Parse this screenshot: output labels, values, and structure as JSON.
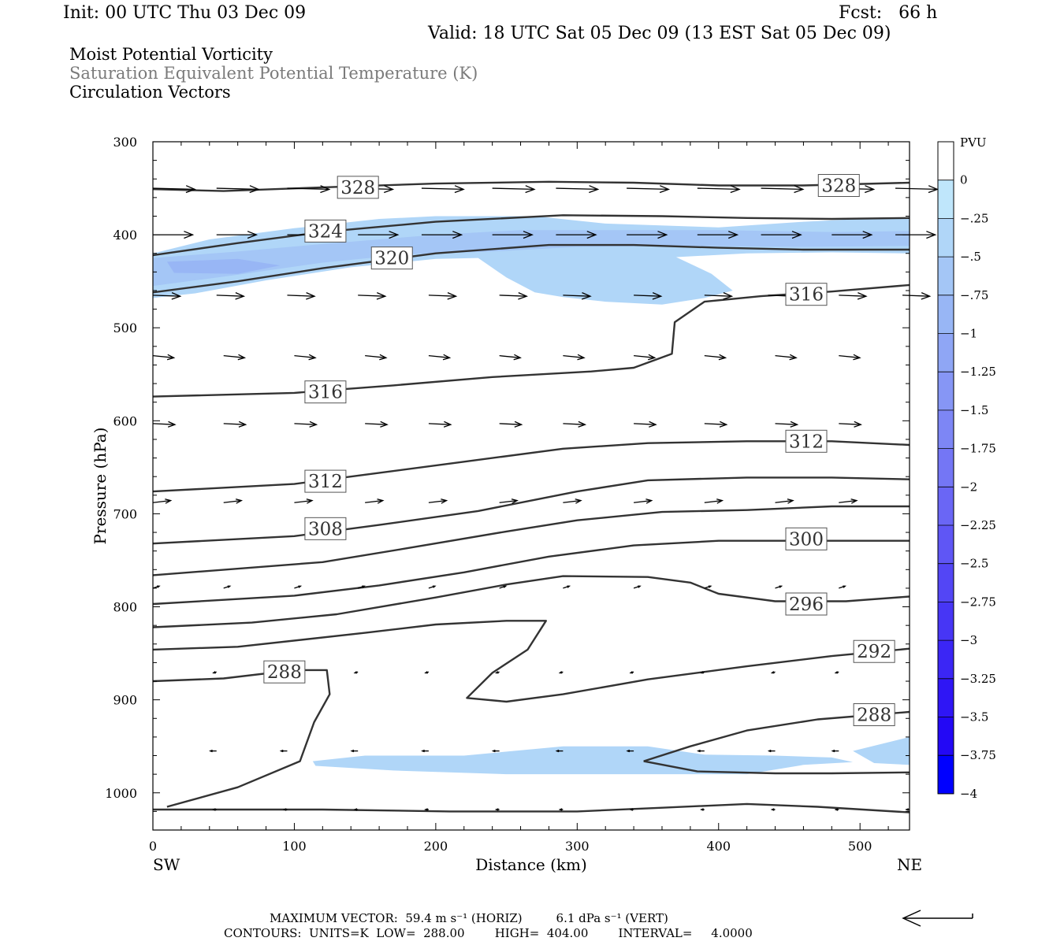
{
  "header": {
    "init": "Init: 00 UTC Thu 03 Dec 09",
    "fcst": "Fcst:   66 h",
    "valid": "Valid: 18 UTC Sat 05 Dec 09 (13 EST Sat 05 Dec 09)",
    "field1": "Moist Potential Vorticity",
    "field2": "Saturation Equivalent Potential Temperature (K)",
    "field3": "Circulation Vectors"
  },
  "footer": {
    "max_vector": "MAXIMUM VECTOR:  59.4 m s⁻¹ (HORIZ)         6.1 dPa s⁻¹ (VERT)",
    "contours": "CONTOURS:  UNITS=K  LOW=  288.00        HIGH=  404.00        INTERVAL=     4.0000"
  },
  "chart_data": {
    "type": "cross-section",
    "xlabel": "Distance (km)",
    "ylabel": "Pressure (hPa)",
    "xlim": [
      0,
      535
    ],
    "ylim": [
      300,
      1040
    ],
    "x_ticks": [
      0,
      100,
      200,
      300,
      400,
      500
    ],
    "y_ticks": [
      300,
      400,
      500,
      600,
      700,
      800,
      900,
      1000
    ],
    "x_end_labels": {
      "left": "SW",
      "right": "NE"
    },
    "colorbar": {
      "units": "PVU",
      "labels": [
        "0",
        "-.25",
        "-.5",
        "-.75",
        "-1",
        "-1.25",
        "-1.5",
        "-1.75",
        "-2",
        "-2.25",
        "-2.5",
        "-2.75",
        "-3",
        "-3.25",
        "-3.5",
        "-3.75",
        "-4"
      ],
      "colors": [
        "#ffffff",
        "#bfe6fb",
        "#b0d6f8",
        "#a4c6f6",
        "#98b6f5",
        "#8fa6f5",
        "#8696f5",
        "#7d86f5",
        "#7476f5",
        "#6a66f5",
        "#5f56f5",
        "#5346f5",
        "#4736f5",
        "#3b26f5",
        "#2f16f5",
        "#2308f5",
        "#0000ff"
      ]
    },
    "contours": [
      {
        "label": "328",
        "points": [
          [
            0,
            351
          ],
          [
            50,
            353
          ],
          [
            120,
            349
          ],
          [
            200,
            345
          ],
          [
            280,
            343
          ],
          [
            340,
            344
          ],
          [
            400,
            347
          ],
          [
            460,
            347
          ],
          [
            535,
            344
          ]
        ]
      },
      {
        "label": "324",
        "points": [
          [
            0,
            422
          ],
          [
            60,
            409
          ],
          [
            120,
            397
          ],
          [
            200,
            386
          ],
          [
            290,
            379
          ],
          [
            360,
            380
          ],
          [
            420,
            382
          ],
          [
            480,
            383
          ],
          [
            535,
            382
          ]
        ]
      },
      {
        "label": "320",
        "points": [
          [
            0,
            462
          ],
          [
            60,
            450
          ],
          [
            120,
            436
          ],
          [
            200,
            420
          ],
          [
            280,
            411
          ],
          [
            340,
            411
          ],
          [
            400,
            414
          ],
          [
            460,
            416
          ],
          [
            535,
            416
          ]
        ]
      },
      {
        "label": "316",
        "points": [
          [
            0,
            574
          ],
          [
            100,
            570
          ],
          [
            170,
            562
          ],
          [
            240,
            553
          ],
          [
            310,
            547
          ],
          [
            340,
            543
          ],
          [
            367,
            528
          ],
          [
            369,
            494
          ],
          [
            390,
            472
          ],
          [
            430,
            466
          ],
          [
            480,
            461
          ],
          [
            535,
            454
          ]
        ]
      },
      {
        "label": "312",
        "points": [
          [
            0,
            676
          ],
          [
            100,
            668
          ],
          [
            150,
            658
          ],
          [
            220,
            644
          ],
          [
            290,
            630
          ],
          [
            350,
            624
          ],
          [
            420,
            622
          ],
          [
            480,
            622
          ],
          [
            535,
            626
          ]
        ]
      },
      {
        "label": "",
        "points": [
          [
            0,
            732
          ],
          [
            100,
            724
          ],
          [
            160,
            712
          ],
          [
            230,
            697
          ],
          [
            300,
            676
          ],
          [
            350,
            664
          ],
          [
            420,
            661
          ],
          [
            480,
            661
          ],
          [
            535,
            663
          ]
        ]
      },
      {
        "label": "",
        "points": [
          [
            0,
            766
          ],
          [
            120,
            752
          ],
          [
            180,
            737
          ],
          [
            250,
            719
          ],
          [
            300,
            707
          ],
          [
            360,
            698
          ],
          [
            420,
            696
          ],
          [
            480,
            692
          ],
          [
            535,
            692
          ]
        ]
      },
      {
        "label": "300",
        "points": [
          [
            0,
            797
          ],
          [
            100,
            788
          ],
          [
            160,
            777
          ],
          [
            220,
            763
          ],
          [
            280,
            746
          ],
          [
            340,
            734
          ],
          [
            400,
            729
          ],
          [
            480,
            729
          ],
          [
            535,
            729
          ]
        ]
      },
      {
        "label": "296",
        "points": [
          [
            0,
            822
          ],
          [
            70,
            817
          ],
          [
            130,
            808
          ],
          [
            200,
            790
          ],
          [
            250,
            776
          ],
          [
            290,
            767
          ],
          [
            350,
            768
          ],
          [
            380,
            774
          ],
          [
            400,
            786
          ],
          [
            440,
            794
          ],
          [
            490,
            794
          ],
          [
            535,
            789
          ]
        ]
      },
      {
        "label": "",
        "points": [
          [
            0,
            846
          ],
          [
            60,
            843
          ],
          [
            150,
            828
          ],
          [
            200,
            819
          ],
          [
            250,
            815
          ],
          [
            278,
            815
          ],
          [
            265,
            846
          ],
          [
            240,
            871
          ],
          [
            222,
            898
          ],
          [
            250,
            902
          ],
          [
            290,
            894
          ],
          [
            350,
            878
          ],
          [
            420,
            864
          ],
          [
            480,
            853
          ],
          [
            535,
            845
          ]
        ]
      },
      {
        "label": "288",
        "points": [
          [
            0,
            880
          ],
          [
            50,
            877
          ],
          [
            100,
            868
          ],
          [
            123,
            868
          ],
          [
            125,
            894
          ],
          [
            114,
            924
          ],
          [
            104,
            966
          ],
          [
            60,
            994
          ],
          [
            10,
            1015
          ]
        ]
      },
      {
        "label": "288",
        "points": [
          [
            347,
            966
          ],
          [
            380,
            950
          ],
          [
            420,
            933
          ],
          [
            470,
            921
          ],
          [
            535,
            913
          ]
        ]
      },
      {
        "label": "",
        "points": [
          [
            347,
            966
          ],
          [
            385,
            977
          ],
          [
            440,
            979
          ],
          [
            480,
            979
          ],
          [
            535,
            978
          ]
        ]
      },
      {
        "label": "",
        "points": [
          [
            0,
            1018
          ],
          [
            120,
            1018
          ],
          [
            210,
            1020
          ],
          [
            300,
            1020
          ],
          [
            360,
            1016
          ],
          [
            420,
            1012
          ],
          [
            470,
            1015
          ],
          [
            535,
            1021
          ]
        ]
      }
    ],
    "contour_labels": [
      {
        "text": "328",
        "x": 145,
        "p": 349
      },
      {
        "text": "328",
        "x": 485,
        "p": 347
      },
      {
        "text": "324",
        "x": 122,
        "p": 396
      },
      {
        "text": "320",
        "x": 169,
        "p": 425
      },
      {
        "text": "316",
        "x": 462,
        "p": 464
      },
      {
        "text": "316",
        "x": 122,
        "p": 569
      },
      {
        "text": "312",
        "x": 462,
        "p": 622
      },
      {
        "text": "312",
        "x": 122,
        "p": 665
      },
      {
        "text": "308",
        "x": 122,
        "p": 716
      },
      {
        "text": "300",
        "x": 462,
        "p": 727
      },
      {
        "text": "296",
        "x": 462,
        "p": 797
      },
      {
        "text": "292",
        "x": 510,
        "p": 848
      },
      {
        "text": "288",
        "x": 93,
        "p": 870
      },
      {
        "text": "288",
        "x": 510,
        "p": 916
      }
    ],
    "pv_regions": [
      {
        "value": -0.5,
        "points": [
          [
            0,
            420
          ],
          [
            40,
            405
          ],
          [
            100,
            393
          ],
          [
            160,
            383
          ],
          [
            200,
            380
          ],
          [
            270,
            380
          ],
          [
            320,
            388
          ],
          [
            400,
            392
          ],
          [
            460,
            386
          ],
          [
            500,
            383
          ],
          [
            535,
            382
          ],
          [
            535,
            420
          ],
          [
            480,
            419
          ],
          [
            420,
            420
          ],
          [
            370,
            424
          ],
          [
            395,
            442
          ],
          [
            410,
            460
          ],
          [
            390,
            468
          ],
          [
            360,
            475
          ],
          [
            320,
            472
          ],
          [
            290,
            467
          ],
          [
            270,
            462
          ],
          [
            250,
            446
          ],
          [
            230,
            425
          ],
          [
            200,
            426
          ],
          [
            140,
            435
          ],
          [
            80,
            449
          ],
          [
            30,
            463
          ],
          [
            0,
            468
          ]
        ]
      },
      {
        "value": -0.75,
        "points": [
          [
            0,
            425
          ],
          [
            60,
            418
          ],
          [
            120,
            410
          ],
          [
            200,
            400
          ],
          [
            260,
            395
          ],
          [
            320,
            395
          ],
          [
            400,
            395
          ],
          [
            480,
            397
          ],
          [
            535,
            396
          ],
          [
            535,
            412
          ],
          [
            460,
            413
          ],
          [
            380,
            412
          ],
          [
            300,
            413
          ],
          [
            240,
            418
          ],
          [
            180,
            421
          ],
          [
            120,
            430
          ],
          [
            60,
            443
          ],
          [
            0,
            455
          ]
        ]
      },
      {
        "value": -1,
        "points": [
          [
            10,
            429
          ],
          [
            60,
            426
          ],
          [
            90,
            433
          ],
          [
            60,
            442
          ],
          [
            15,
            441
          ]
        ]
      },
      {
        "value": -0.5,
        "points": [
          [
            113,
            966
          ],
          [
            150,
            960
          ],
          [
            220,
            960
          ],
          [
            290,
            950
          ],
          [
            350,
            950
          ],
          [
            390,
            959
          ],
          [
            440,
            960
          ],
          [
            480,
            962
          ],
          [
            495,
            967
          ],
          [
            460,
            970
          ],
          [
            440,
            975
          ],
          [
            420,
            980
          ],
          [
            350,
            980
          ],
          [
            250,
            980
          ],
          [
            170,
            976
          ],
          [
            115,
            971
          ]
        ]
      },
      {
        "value": -0.5,
        "points": [
          [
            495,
            955
          ],
          [
            535,
            940
          ],
          [
            535,
            970
          ],
          [
            510,
            968
          ]
        ]
      }
    ],
    "vector_rows": [
      {
        "p": 350,
        "xs": [
          0,
          45,
          95,
          140,
          190,
          240,
          285,
          335,
          385,
          430,
          480,
          525
        ],
        "u": 40,
        "w": 1
      },
      {
        "p": 400,
        "xs": [
          0,
          45,
          95,
          145,
          190,
          240,
          285,
          335,
          385,
          430,
          480,
          525
        ],
        "u": 38,
        "w": 0
      },
      {
        "p": 465,
        "xs": [
          0,
          45,
          95,
          145,
          195,
          245,
          290,
          340,
          390,
          435,
          485,
          530
        ],
        "u": 26,
        "w": 1
      },
      {
        "p": 530,
        "xs": [
          0,
          50,
          100,
          150,
          195,
          245,
          290,
          340,
          390,
          440,
          485
        ],
        "u": 20,
        "w": 2
      },
      {
        "p": 603,
        "xs": [
          0,
          50,
          100,
          150,
          195,
          245,
          290,
          340,
          390,
          440,
          485
        ],
        "u": 21,
        "w": 1
      },
      {
        "p": 688,
        "xs": [
          0,
          50,
          100,
          150,
          195,
          245,
          290,
          340,
          390,
          440,
          485
        ],
        "u": 17,
        "w": -2
      },
      {
        "p": 780,
        "xs": [
          0,
          50,
          100,
          145,
          195,
          245,
          290,
          340,
          390,
          440,
          485
        ],
        "u": 6,
        "w": -2
      },
      {
        "p": 870,
        "xs": [
          45,
          95,
          145,
          195,
          245,
          290,
          340,
          390,
          440,
          485
        ],
        "u": -3,
        "w": 1
      },
      {
        "p": 955,
        "xs": [
          45,
          95,
          145,
          195,
          245,
          290,
          340,
          390,
          440,
          485
        ],
        "u": -6,
        "w": 0
      },
      {
        "p": 1018,
        "xs": [
          45,
          95,
          145,
          195,
          245,
          290,
          340,
          390,
          440,
          485,
          535
        ],
        "u": -3,
        "w": 0
      }
    ],
    "reference_vector": {
      "direction": "left"
    }
  }
}
